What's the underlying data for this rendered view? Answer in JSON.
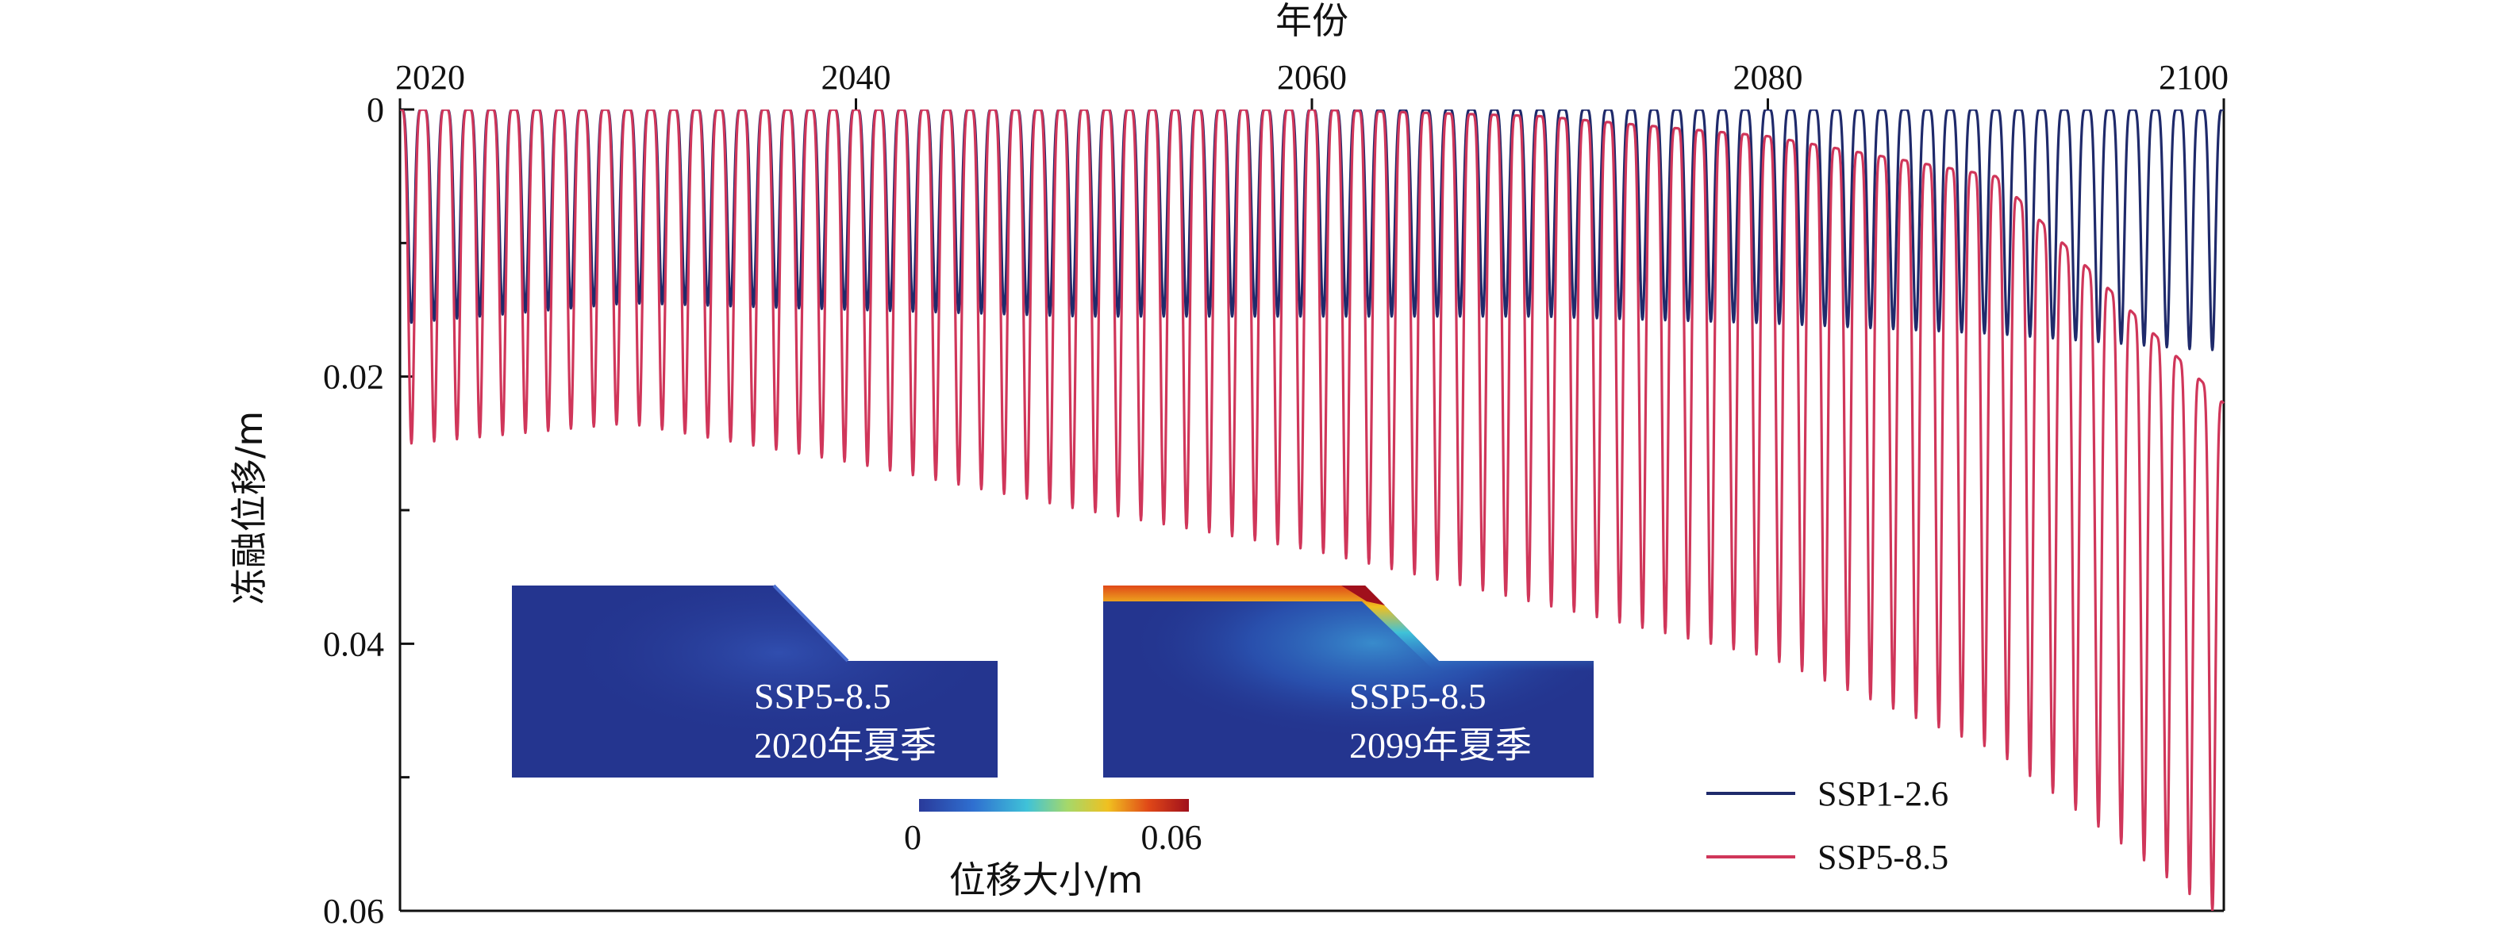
{
  "chart_data": {
    "type": "line",
    "xlabel": "年份",
    "ylabel": "冻融位移/m",
    "xlim": [
      2020,
      2100
    ],
    "ylim": [
      0,
      0.06
    ],
    "y_inverted": true,
    "x_axis_position": "top",
    "x_ticks": [
      "2020",
      "2040",
      "2060",
      "2080",
      "2100"
    ],
    "y_ticks": [
      "0",
      "0.02",
      "0.04",
      "0.06"
    ],
    "grid": false,
    "legend_position": "bottom-right",
    "series": [
      {
        "name": "SSP1-2.6",
        "color": "#1f2a6b",
        "pattern": "annual freeze-thaw oscillation",
        "peak_x": [
          2020.2,
          2030,
          2040,
          2050,
          2060,
          2070,
          2080,
          2090,
          2099
        ],
        "peak_y": [
          0.016,
          0.0145,
          0.015,
          0.0155,
          0.0155,
          0.0155,
          0.016,
          0.0168,
          0.018
        ],
        "trough_y": 0.0
      },
      {
        "name": "SSP5-8.5",
        "color": "#d0365a",
        "pattern": "annual freeze-thaw oscillation",
        "peak_x": [
          2020.5,
          2030,
          2040,
          2050,
          2060,
          2070,
          2080,
          2090,
          2099.5
        ],
        "peak_y": [
          0.025,
          0.0235,
          0.0265,
          0.03,
          0.033,
          0.037,
          0.041,
          0.048,
          0.06
        ],
        "trough_x": [
          2020,
          2040,
          2060,
          2070,
          2080,
          2090,
          2100
        ],
        "trough_y": [
          0.0,
          0.0,
          0.0,
          0.0005,
          0.002,
          0.005,
          0.022
        ]
      }
    ],
    "insets": [
      {
        "label_line1": "SSP5-8.5",
        "label_line2": "2020年夏季"
      },
      {
        "label_line1": "SSP5-8.5",
        "label_line2": "2099年夏季"
      }
    ],
    "colorbar": {
      "min_label": "0",
      "max_label": "0.06",
      "title": "位移大小/m",
      "colors": [
        "#2a3a9a",
        "#2f6fd0",
        "#3fc2d8",
        "#a5d86a",
        "#f0c020",
        "#e04818",
        "#a0101c"
      ]
    }
  }
}
